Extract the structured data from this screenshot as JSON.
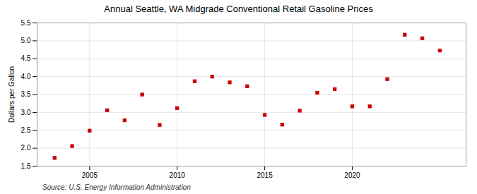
{
  "chart_data": {
    "type": "scatter",
    "title": "Annual Seattle, WA Midgrade Conventional Retail Gasoline Prices",
    "ylabel": "Dollars per Gallon",
    "source": "Source: U.S. Energy Information Administration",
    "x": [
      2003,
      2004,
      2005,
      2006,
      2007,
      2008,
      2009,
      2010,
      2011,
      2012,
      2013,
      2014,
      2015,
      2016,
      2017,
      2018,
      2019,
      2020,
      2021,
      2022,
      2023,
      2024,
      2025
    ],
    "values": [
      1.73,
      2.06,
      2.49,
      3.06,
      2.78,
      3.5,
      2.65,
      3.12,
      3.87,
      4.0,
      3.84,
      3.73,
      2.93,
      2.66,
      3.05,
      3.55,
      3.65,
      3.17,
      3.17,
      3.93,
      5.17,
      5.07,
      4.73
    ],
    "color": "#cc0000",
    "marker": "square",
    "xlim": [
      2002.0,
      2026.5
    ],
    "xticks": [
      2005,
      2010,
      2015,
      2020
    ],
    "ylim": [
      1.5,
      5.5
    ],
    "yticks": [
      1.5,
      {
        "value": 2.0,
        "label": "2.0"
      },
      2.5,
      {
        "value": 3.0,
        "label": "3.0"
      },
      3.5,
      {
        "value": 4.0,
        "label": "4.0"
      },
      4.5,
      {
        "value": 5.0,
        "label": "5.0"
      },
      5.5
    ],
    "grid": true
  }
}
